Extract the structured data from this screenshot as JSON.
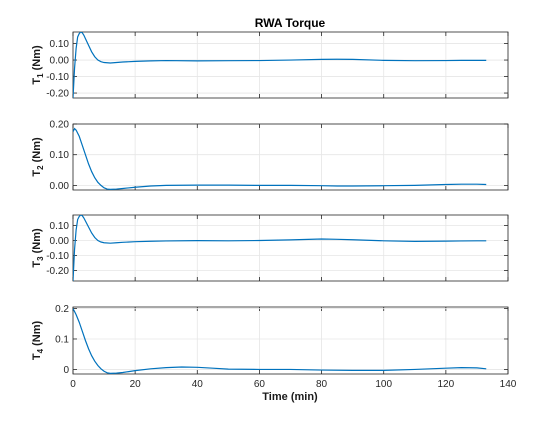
{
  "figure": {
    "title": "RWA Torque",
    "xlabel": "Time (min)"
  },
  "chart_data": [
    {
      "type": "line",
      "ylabel_main": "T",
      "ylabel_sub": "1",
      "ylabel_unit": " (Nm)",
      "xlim": [
        0,
        140
      ],
      "ylim": [
        -0.23,
        0.17
      ],
      "yticks": [
        -0.2,
        -0.1,
        0.0,
        0.1
      ],
      "ytick_labels": [
        "-0.20",
        "-0.10",
        "0.00",
        "0.10"
      ],
      "xtick_labels_visible": false,
      "grid": true,
      "series": [
        {
          "color": "#0072BD",
          "x": [
            0,
            0.5,
            1,
            1.5,
            2,
            2.5,
            3,
            3.5,
            4,
            5,
            6,
            7,
            8,
            9,
            10,
            12,
            14,
            16,
            20,
            25,
            30,
            40,
            50,
            60,
            70,
            80,
            85,
            90,
            100,
            110,
            120,
            125,
            130,
            133
          ],
          "y": [
            -0.23,
            -0.05,
            0.07,
            0.14,
            0.16,
            0.17,
            0.165,
            0.15,
            0.13,
            0.09,
            0.05,
            0.02,
            0.0,
            -0.01,
            -0.015,
            -0.018,
            -0.015,
            -0.012,
            -0.008,
            -0.005,
            -0.003,
            -0.005,
            -0.004,
            -0.003,
            0.0,
            0.004,
            0.005,
            0.004,
            -0.002,
            -0.004,
            -0.003,
            -0.002,
            -0.002,
            -0.002
          ]
        }
      ]
    },
    {
      "type": "line",
      "ylabel_main": "T",
      "ylabel_sub": "2",
      "ylabel_unit": " (Nm)",
      "xlim": [
        0,
        140
      ],
      "ylim": [
        -0.015,
        0.2
      ],
      "yticks": [
        0.0,
        0.1,
        0.2
      ],
      "ytick_labels": [
        "0.00",
        "0.10",
        "0.20"
      ],
      "xtick_labels_visible": false,
      "grid": true,
      "series": [
        {
          "color": "#0072BD",
          "x": [
            0,
            0.5,
            1,
            2,
            3,
            4,
            5,
            6,
            7,
            8,
            9,
            10,
            11,
            12,
            14,
            16,
            20,
            25,
            30,
            40,
            50,
            60,
            70,
            80,
            85,
            90,
            100,
            110,
            120,
            125,
            130,
            133
          ],
          "y": [
            0.175,
            0.185,
            0.18,
            0.16,
            0.13,
            0.1,
            0.07,
            0.045,
            0.025,
            0.01,
            0.0,
            -0.008,
            -0.012,
            -0.013,
            -0.012,
            -0.01,
            -0.006,
            -0.002,
            0.0,
            0.001,
            0.001,
            0.0,
            0.0,
            -0.001,
            -0.002,
            -0.002,
            -0.001,
            0.0,
            0.003,
            0.004,
            0.004,
            0.003
          ]
        }
      ]
    },
    {
      "type": "line",
      "ylabel_main": "T",
      "ylabel_sub": "3",
      "ylabel_unit": " (Nm)",
      "xlim": [
        0,
        140
      ],
      "ylim": [
        -0.27,
        0.17
      ],
      "yticks": [
        -0.2,
        -0.1,
        0.0,
        0.1
      ],
      "ytick_labels": [
        "-0.20",
        "-0.10",
        "0.00",
        "0.10"
      ],
      "xtick_labels_visible": false,
      "grid": true,
      "series": [
        {
          "color": "#0072BD",
          "x": [
            0,
            0.5,
            1,
            1.5,
            2,
            2.5,
            3,
            3.5,
            4,
            5,
            6,
            7,
            8,
            9,
            10,
            12,
            14,
            16,
            20,
            25,
            30,
            40,
            50,
            60,
            70,
            80,
            85,
            90,
            100,
            110,
            120,
            125,
            130,
            133
          ],
          "y": [
            -0.27,
            -0.06,
            0.07,
            0.14,
            0.16,
            0.17,
            0.165,
            0.15,
            0.13,
            0.09,
            0.05,
            0.02,
            0.0,
            -0.01,
            -0.015,
            -0.018,
            -0.015,
            -0.012,
            -0.008,
            -0.005,
            -0.003,
            -0.001,
            -0.002,
            0.0,
            0.004,
            0.01,
            0.008,
            0.005,
            -0.002,
            -0.006,
            -0.004,
            -0.003,
            -0.002,
            -0.002
          ]
        }
      ]
    },
    {
      "type": "line",
      "ylabel_main": "T",
      "ylabel_sub": "4",
      "ylabel_unit": " (Nm)",
      "xlim": [
        0,
        140
      ],
      "ylim": [
        -0.015,
        0.205
      ],
      "yticks": [
        0.0,
        0.1,
        0.2
      ],
      "ytick_labels": [
        "0",
        "0.1",
        "0.2"
      ],
      "xticks": [
        0,
        20,
        40,
        60,
        80,
        100,
        120,
        140
      ],
      "xtick_labels": [
        "0",
        "20",
        "40",
        "60",
        "80",
        "100",
        "120",
        "140"
      ],
      "xtick_labels_visible": true,
      "grid": true,
      "series": [
        {
          "color": "#0072BD",
          "x": [
            0,
            0.5,
            1,
            2,
            3,
            4,
            5,
            6,
            7,
            8,
            9,
            10,
            11,
            12,
            14,
            16,
            20,
            25,
            30,
            35,
            40,
            45,
            50,
            60,
            70,
            80,
            90,
            100,
            110,
            120,
            125,
            130,
            133
          ],
          "y": [
            0.2,
            0.19,
            0.18,
            0.155,
            0.125,
            0.095,
            0.068,
            0.045,
            0.027,
            0.013,
            0.002,
            -0.006,
            -0.011,
            -0.013,
            -0.012,
            -0.01,
            -0.004,
            0.002,
            0.006,
            0.008,
            0.007,
            0.004,
            0.001,
            0.0,
            0.0,
            -0.002,
            -0.003,
            -0.003,
            0.0,
            0.004,
            0.006,
            0.005,
            0.002
          ]
        }
      ]
    }
  ]
}
